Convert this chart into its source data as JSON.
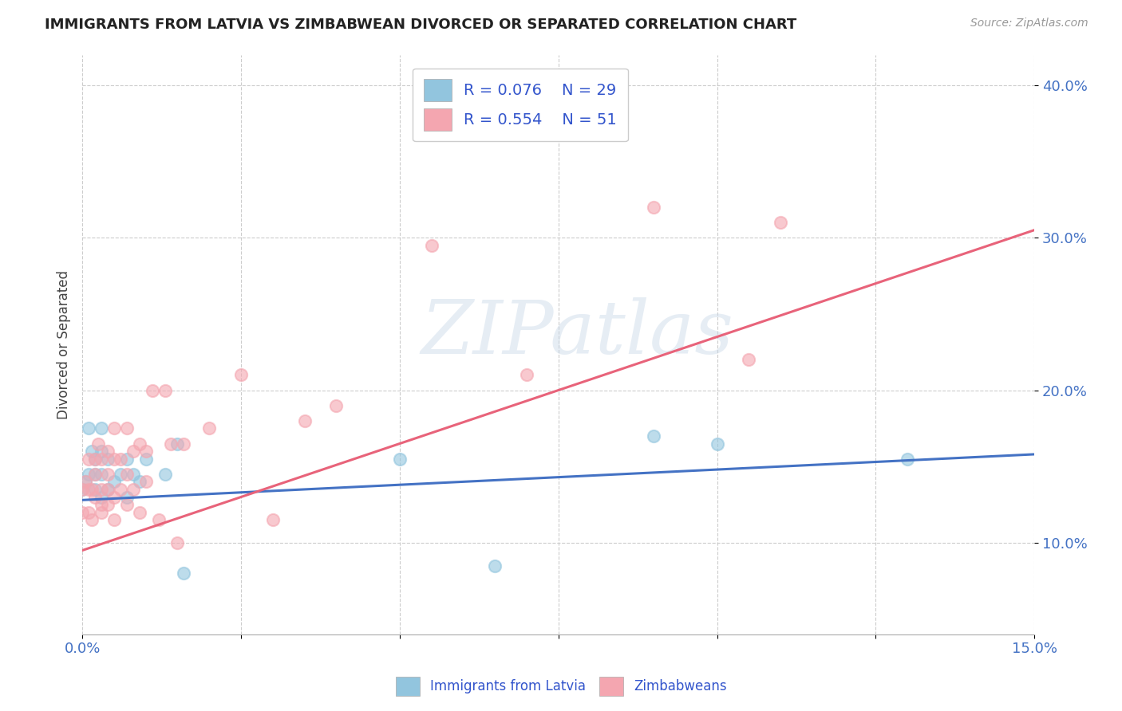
{
  "title": "IMMIGRANTS FROM LATVIA VS ZIMBABWEAN DIVORCED OR SEPARATED CORRELATION CHART",
  "source_text": "Source: ZipAtlas.com",
  "ylabel": "Divorced or Separated",
  "xlim": [
    0.0,
    0.15
  ],
  "ylim": [
    0.04,
    0.42
  ],
  "xticks": [
    0.0,
    0.025,
    0.05,
    0.075,
    0.1,
    0.125,
    0.15
  ],
  "xticklabels": [
    "0.0%",
    "",
    "",
    "",
    "",
    "",
    "15.0%"
  ],
  "yticks": [
    0.1,
    0.2,
    0.3,
    0.4
  ],
  "yticklabels": [
    "10.0%",
    "20.0%",
    "30.0%",
    "40.0%"
  ],
  "legend_r1": "R = 0.076",
  "legend_n1": "N = 29",
  "legend_r2": "R = 0.554",
  "legend_n2": "N = 51",
  "color_latvia": "#92c5de",
  "color_zimbabwe": "#f4a6b0",
  "color_line_latvia": "#4472c4",
  "color_line_zimbabwe": "#e8637a",
  "background_color": "#ffffff",
  "latvia_x": [
    0.0,
    0.0005,
    0.001,
    0.001,
    0.0015,
    0.002,
    0.002,
    0.002,
    0.003,
    0.003,
    0.003,
    0.003,
    0.004,
    0.004,
    0.005,
    0.006,
    0.007,
    0.007,
    0.008,
    0.009,
    0.01,
    0.013,
    0.015,
    0.016,
    0.05,
    0.065,
    0.09,
    0.1,
    0.13
  ],
  "latvia_y": [
    0.135,
    0.14,
    0.145,
    0.175,
    0.16,
    0.135,
    0.145,
    0.155,
    0.13,
    0.145,
    0.16,
    0.175,
    0.135,
    0.155,
    0.14,
    0.145,
    0.13,
    0.155,
    0.145,
    0.14,
    0.155,
    0.145,
    0.165,
    0.08,
    0.155,
    0.085,
    0.17,
    0.165,
    0.155
  ],
  "zimbabwe_x": [
    0.0,
    0.0,
    0.0005,
    0.001,
    0.001,
    0.001,
    0.0015,
    0.0015,
    0.002,
    0.002,
    0.002,
    0.0025,
    0.003,
    0.003,
    0.003,
    0.003,
    0.004,
    0.004,
    0.004,
    0.004,
    0.005,
    0.005,
    0.005,
    0.005,
    0.006,
    0.006,
    0.007,
    0.007,
    0.007,
    0.008,
    0.008,
    0.009,
    0.009,
    0.01,
    0.01,
    0.011,
    0.012,
    0.013,
    0.014,
    0.015,
    0.016,
    0.02,
    0.025,
    0.03,
    0.035,
    0.04,
    0.055,
    0.07,
    0.09,
    0.105,
    0.11
  ],
  "zimbabwe_y": [
    0.12,
    0.135,
    0.14,
    0.12,
    0.135,
    0.155,
    0.115,
    0.135,
    0.13,
    0.145,
    0.155,
    0.165,
    0.12,
    0.125,
    0.135,
    0.155,
    0.125,
    0.135,
    0.145,
    0.16,
    0.115,
    0.13,
    0.155,
    0.175,
    0.135,
    0.155,
    0.125,
    0.145,
    0.175,
    0.135,
    0.16,
    0.12,
    0.165,
    0.14,
    0.16,
    0.2,
    0.115,
    0.2,
    0.165,
    0.1,
    0.165,
    0.175,
    0.21,
    0.115,
    0.18,
    0.19,
    0.295,
    0.21,
    0.32,
    0.22,
    0.31
  ],
  "line_latvia_y0": 0.128,
  "line_latvia_y1": 0.158,
  "line_zimbabwe_y0": 0.095,
  "line_zimbabwe_y1": 0.305
}
